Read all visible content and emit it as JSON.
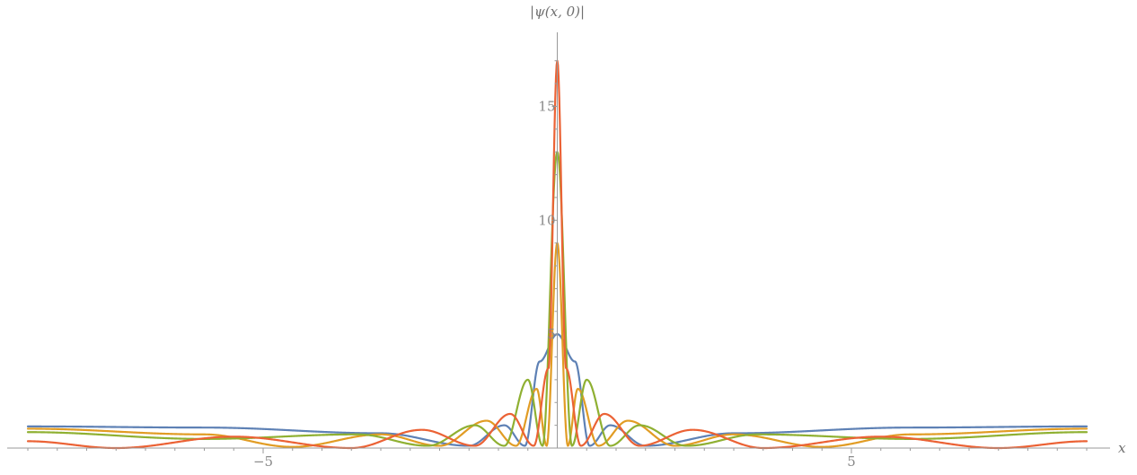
{
  "chart_data": {
    "type": "line",
    "title": "",
    "xlabel": "x",
    "ylabel": "|ψ(x, 0)|",
    "xlim": [
      -9,
      9
    ],
    "ylim": [
      0,
      17.5
    ],
    "x_ticks": [
      -5,
      5
    ],
    "x_tick_labels": [
      "−5",
      "5"
    ],
    "y_ticks": [
      5,
      10,
      15
    ],
    "y_tick_labels": [
      "5",
      "10",
      "15"
    ],
    "grid": false,
    "legend": "none",
    "series": [
      {
        "color": "#5e81b5",
        "peak": 5,
        "baseline": 1.0,
        "x": [
          -9,
          -6,
          -3,
          -1.5,
          -0.9,
          -0.55,
          -0.3,
          0,
          0.3,
          0.55,
          0.9,
          1.5,
          3,
          6,
          9
        ],
        "y": [
          0.95,
          0.9,
          0.65,
          0.1,
          1.0,
          0.1,
          3.8,
          5.0,
          3.8,
          0.1,
          1.0,
          0.1,
          0.65,
          0.9,
          0.95
        ]
      },
      {
        "color": "#e19c24",
        "peak": 9,
        "baseline": 0.85,
        "x": [
          -9,
          -6,
          -4.5,
          -3,
          -2,
          -1.2,
          -0.7,
          -0.35,
          -0.18,
          0,
          0.18,
          0.35,
          0.7,
          1.2,
          2,
          3,
          4.5,
          6,
          9
        ],
        "y": [
          0.85,
          0.6,
          0.05,
          0.6,
          0.1,
          1.2,
          0.1,
          2.6,
          0.1,
          9.0,
          0.1,
          2.6,
          0.1,
          1.2,
          0.1,
          0.6,
          0.05,
          0.6,
          0.85
        ]
      },
      {
        "color": "#8fb032",
        "peak": 13,
        "baseline": 0.7,
        "x": [
          -9,
          -6,
          -3.4,
          -2.2,
          -1.4,
          -0.9,
          -0.5,
          -0.25,
          0,
          0.25,
          0.5,
          0.9,
          1.4,
          2.2,
          3.4,
          6,
          9
        ],
        "y": [
          0.7,
          0.4,
          0.6,
          0.1,
          1.0,
          0.1,
          3.0,
          0.1,
          13.0,
          0.1,
          3.0,
          0.1,
          1.0,
          0.1,
          0.6,
          0.4,
          0.7
        ]
      },
      {
        "color": "#eb6235",
        "peak": 17,
        "baseline": 0.3,
        "x": [
          -9,
          -7.5,
          -5.5,
          -3.5,
          -2.3,
          -1.4,
          -0.8,
          -0.4,
          -0.15,
          0,
          0.15,
          0.4,
          0.8,
          1.4,
          2.3,
          3.5,
          5.5,
          7.5,
          9
        ],
        "y": [
          0.3,
          0.0,
          0.5,
          0.0,
          0.8,
          0.1,
          1.5,
          0.1,
          3.5,
          17.0,
          3.5,
          0.1,
          1.5,
          0.1,
          0.8,
          0.0,
          0.5,
          0.0,
          0.3
        ]
      }
    ]
  }
}
